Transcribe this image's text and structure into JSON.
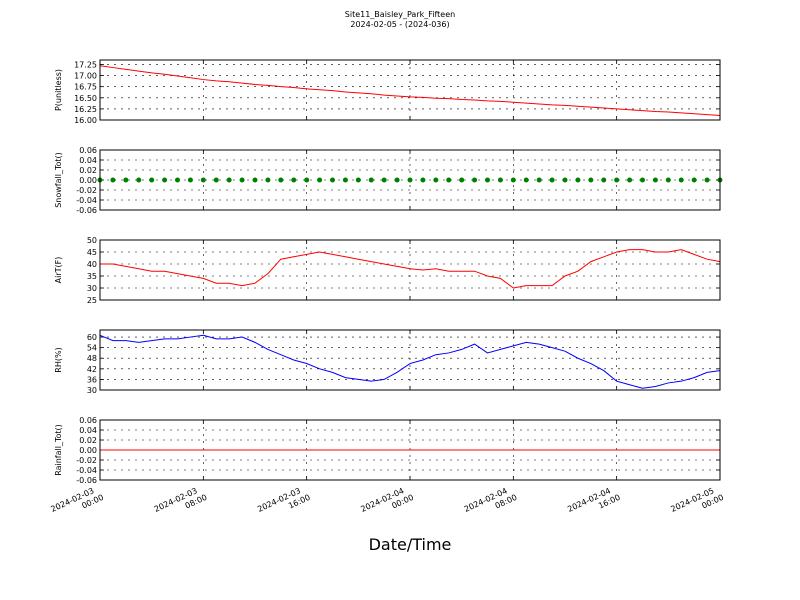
{
  "chart_data": [
    {
      "type": "line",
      "title": "Site11_Baisley_Park_Fifteen",
      "subtitle": "2024-02-05 - (2024-036)",
      "ylabel": "P(unitless)",
      "color": "#ff0000",
      "x": [
        "2024-02-03 00:00",
        "2024-02-03 01:00",
        "2024-02-03 02:00",
        "2024-02-03 03:00",
        "2024-02-03 04:00",
        "2024-02-03 05:00",
        "2024-02-03 06:00",
        "2024-02-03 07:00",
        "2024-02-03 08:00",
        "2024-02-03 09:00",
        "2024-02-03 10:00",
        "2024-02-03 11:00",
        "2024-02-03 12:00",
        "2024-02-03 13:00",
        "2024-02-03 14:00",
        "2024-02-03 15:00",
        "2024-02-03 16:00",
        "2024-02-03 17:00",
        "2024-02-03 18:00",
        "2024-02-03 19:00",
        "2024-02-03 20:00",
        "2024-02-03 21:00",
        "2024-02-03 22:00",
        "2024-02-03 23:00",
        "2024-02-04 00:00",
        "2024-02-04 01:00",
        "2024-02-04 02:00",
        "2024-02-04 03:00",
        "2024-02-04 04:00",
        "2024-02-04 05:00",
        "2024-02-04 06:00",
        "2024-02-04 07:00",
        "2024-02-04 08:00",
        "2024-02-04 09:00",
        "2024-02-04 10:00",
        "2024-02-04 11:00",
        "2024-02-04 12:00",
        "2024-02-04 13:00",
        "2024-02-04 14:00",
        "2024-02-04 15:00",
        "2024-02-04 16:00",
        "2024-02-04 17:00",
        "2024-02-04 18:00",
        "2024-02-04 19:00",
        "2024-02-04 20:00",
        "2024-02-04 21:00",
        "2024-02-04 22:00",
        "2024-02-04 23:00",
        "2024-02-05 00:00"
      ],
      "values": [
        17.22,
        17.18,
        17.14,
        17.1,
        17.06,
        17.03,
        16.99,
        16.95,
        16.91,
        16.88,
        16.86,
        16.83,
        16.8,
        16.78,
        16.75,
        16.73,
        16.7,
        16.68,
        16.66,
        16.63,
        16.61,
        16.59,
        16.56,
        16.54,
        16.52,
        16.51,
        16.49,
        16.48,
        16.46,
        16.45,
        16.43,
        16.42,
        16.4,
        16.38,
        16.36,
        16.34,
        16.33,
        16.31,
        16.29,
        16.27,
        16.25,
        16.23,
        16.21,
        16.19,
        16.18,
        16.16,
        16.14,
        16.12,
        16.1
      ],
      "xlim": [
        "2024-02-03 00:00",
        "2024-02-05 00:00"
      ],
      "xticks": [
        "2024-02-03 00:00",
        "2024-02-03 08:00",
        "2024-02-03 16:00",
        "2024-02-04 00:00",
        "2024-02-04 08:00",
        "2024-02-04 16:00",
        "2024-02-05 00:00"
      ],
      "ylim": [
        16.0,
        17.35
      ],
      "yticks": [
        {
          "value": 16.0,
          "label": "16.00"
        },
        16.25,
        {
          "value": 16.5,
          "label": "16.50"
        },
        16.75,
        {
          "value": 17.0,
          "label": "17.00"
        },
        17.25
      ],
      "grid": true
    },
    {
      "type": "scatter",
      "ylabel": "Snowfall_Tot()",
      "color": "#008000",
      "x": [
        "2024-02-03 00:00",
        "2024-02-03 01:00",
        "2024-02-03 02:00",
        "2024-02-03 03:00",
        "2024-02-03 04:00",
        "2024-02-03 05:00",
        "2024-02-03 06:00",
        "2024-02-03 07:00",
        "2024-02-03 08:00",
        "2024-02-03 09:00",
        "2024-02-03 10:00",
        "2024-02-03 11:00",
        "2024-02-03 12:00",
        "2024-02-03 13:00",
        "2024-02-03 14:00",
        "2024-02-03 15:00",
        "2024-02-03 16:00",
        "2024-02-03 17:00",
        "2024-02-03 18:00",
        "2024-02-03 19:00",
        "2024-02-03 20:00",
        "2024-02-03 21:00",
        "2024-02-03 22:00",
        "2024-02-03 23:00",
        "2024-02-04 00:00",
        "2024-02-04 01:00",
        "2024-02-04 02:00",
        "2024-02-04 03:00",
        "2024-02-04 04:00",
        "2024-02-04 05:00",
        "2024-02-04 06:00",
        "2024-02-04 07:00",
        "2024-02-04 08:00",
        "2024-02-04 09:00",
        "2024-02-04 10:00",
        "2024-02-04 11:00",
        "2024-02-04 12:00",
        "2024-02-04 13:00",
        "2024-02-04 14:00",
        "2024-02-04 15:00",
        "2024-02-04 16:00",
        "2024-02-04 17:00",
        "2024-02-04 18:00",
        "2024-02-04 19:00",
        "2024-02-04 20:00",
        "2024-02-04 21:00",
        "2024-02-04 22:00",
        "2024-02-04 23:00",
        "2024-02-05 00:00"
      ],
      "values": [
        0,
        0,
        0,
        0,
        0,
        0,
        0,
        0,
        0,
        0,
        0,
        0,
        0,
        0,
        0,
        0,
        0,
        0,
        0,
        0,
        0,
        0,
        0,
        0,
        0,
        0,
        0,
        0,
        0,
        0,
        0,
        0,
        0,
        0,
        0,
        0,
        0,
        0,
        0,
        0,
        0,
        0,
        0,
        0,
        0,
        0,
        0,
        0,
        0
      ],
      "xlim": [
        "2024-02-03 00:00",
        "2024-02-05 00:00"
      ],
      "xticks": [
        "2024-02-03 00:00",
        "2024-02-03 08:00",
        "2024-02-03 16:00",
        "2024-02-04 00:00",
        "2024-02-04 08:00",
        "2024-02-04 16:00",
        "2024-02-05 00:00"
      ],
      "ylim": [
        -0.06,
        0.06
      ],
      "yticks": [
        -0.06,
        -0.04,
        -0.02,
        {
          "value": 0,
          "label": "0.00"
        },
        0.02,
        0.04,
        0.06
      ],
      "grid": true
    },
    {
      "type": "line",
      "ylabel": "AirT(F)",
      "color": "#ff0000",
      "x": [
        "2024-02-03 00:00",
        "2024-02-03 01:00",
        "2024-02-03 02:00",
        "2024-02-03 03:00",
        "2024-02-03 04:00",
        "2024-02-03 05:00",
        "2024-02-03 06:00",
        "2024-02-03 07:00",
        "2024-02-03 08:00",
        "2024-02-03 09:00",
        "2024-02-03 10:00",
        "2024-02-03 11:00",
        "2024-02-03 12:00",
        "2024-02-03 13:00",
        "2024-02-03 14:00",
        "2024-02-03 15:00",
        "2024-02-03 16:00",
        "2024-02-03 17:00",
        "2024-02-03 18:00",
        "2024-02-03 19:00",
        "2024-02-03 20:00",
        "2024-02-03 21:00",
        "2024-02-03 22:00",
        "2024-02-03 23:00",
        "2024-02-04 00:00",
        "2024-02-04 01:00",
        "2024-02-04 02:00",
        "2024-02-04 03:00",
        "2024-02-04 04:00",
        "2024-02-04 05:00",
        "2024-02-04 06:00",
        "2024-02-04 07:00",
        "2024-02-04 08:00",
        "2024-02-04 09:00",
        "2024-02-04 10:00",
        "2024-02-04 11:00",
        "2024-02-04 12:00",
        "2024-02-04 13:00",
        "2024-02-04 14:00",
        "2024-02-04 15:00",
        "2024-02-04 16:00",
        "2024-02-04 17:00",
        "2024-02-04 18:00",
        "2024-02-04 19:00",
        "2024-02-04 20:00",
        "2024-02-04 21:00",
        "2024-02-04 22:00",
        "2024-02-04 23:00",
        "2024-02-05 00:00"
      ],
      "values": [
        40,
        40,
        39,
        38,
        37,
        37,
        36,
        35,
        34,
        32,
        32,
        31,
        32,
        36,
        42,
        43,
        44,
        45,
        44,
        43,
        42,
        41,
        40,
        39,
        38,
        37.5,
        38,
        37,
        37,
        37,
        35,
        34,
        30,
        31,
        31,
        31,
        35,
        37,
        41,
        43,
        45,
        46,
        46,
        45,
        45,
        46,
        44,
        42,
        41
      ],
      "xlim": [
        "2024-02-03 00:00",
        "2024-02-05 00:00"
      ],
      "xticks": [
        "2024-02-03 00:00",
        "2024-02-03 08:00",
        "2024-02-03 16:00",
        "2024-02-04 00:00",
        "2024-02-04 08:00",
        "2024-02-04 16:00",
        "2024-02-05 00:00"
      ],
      "ylim": [
        25,
        50
      ],
      "yticks": [
        25,
        30,
        35,
        40,
        45,
        50
      ],
      "grid": true
    },
    {
      "type": "line",
      "ylabel": "RH(%)",
      "color": "#0000ff",
      "x": [
        "2024-02-03 00:00",
        "2024-02-03 01:00",
        "2024-02-03 02:00",
        "2024-02-03 03:00",
        "2024-02-03 04:00",
        "2024-02-03 05:00",
        "2024-02-03 06:00",
        "2024-02-03 07:00",
        "2024-02-03 08:00",
        "2024-02-03 09:00",
        "2024-02-03 10:00",
        "2024-02-03 11:00",
        "2024-02-03 12:00",
        "2024-02-03 13:00",
        "2024-02-03 14:00",
        "2024-02-03 15:00",
        "2024-02-03 16:00",
        "2024-02-03 17:00",
        "2024-02-03 18:00",
        "2024-02-03 19:00",
        "2024-02-03 20:00",
        "2024-02-03 21:00",
        "2024-02-03 22:00",
        "2024-02-03 23:00",
        "2024-02-04 00:00",
        "2024-02-04 01:00",
        "2024-02-04 02:00",
        "2024-02-04 03:00",
        "2024-02-04 04:00",
        "2024-02-04 05:00",
        "2024-02-04 06:00",
        "2024-02-04 07:00",
        "2024-02-04 08:00",
        "2024-02-04 09:00",
        "2024-02-04 10:00",
        "2024-02-04 11:00",
        "2024-02-04 12:00",
        "2024-02-04 13:00",
        "2024-02-04 14:00",
        "2024-02-04 15:00",
        "2024-02-04 16:00",
        "2024-02-04 17:00",
        "2024-02-04 18:00",
        "2024-02-04 19:00",
        "2024-02-04 20:00",
        "2024-02-04 21:00",
        "2024-02-04 22:00",
        "2024-02-04 23:00",
        "2024-02-05 00:00"
      ],
      "values": [
        61,
        58,
        58,
        57,
        58,
        59,
        59,
        60,
        61,
        59,
        59,
        60,
        57,
        53,
        50,
        47,
        45,
        42,
        40,
        37,
        36,
        35,
        36,
        40,
        45,
        47,
        50,
        51,
        53,
        56,
        51,
        53,
        55,
        57,
        56,
        54,
        52,
        48,
        45,
        41,
        35,
        33,
        31,
        32,
        34,
        35,
        37,
        40,
        41
      ],
      "xlim": [
        "2024-02-03 00:00",
        "2024-02-05 00:00"
      ],
      "xticks": [
        "2024-02-03 00:00",
        "2024-02-03 08:00",
        "2024-02-03 16:00",
        "2024-02-04 00:00",
        "2024-02-04 08:00",
        "2024-02-04 16:00",
        "2024-02-05 00:00"
      ],
      "ylim": [
        30,
        64
      ],
      "yticks": [
        30,
        36,
        42,
        48,
        54,
        60
      ],
      "grid": true
    },
    {
      "type": "line",
      "ylabel": "Rainfall_Tot()",
      "xlabel": "Date/Time",
      "color": "#ff0000",
      "x": [
        "2024-02-03 00:00",
        "2024-02-03 01:00",
        "2024-02-03 02:00",
        "2024-02-03 03:00",
        "2024-02-03 04:00",
        "2024-02-03 05:00",
        "2024-02-03 06:00",
        "2024-02-03 07:00",
        "2024-02-03 08:00",
        "2024-02-03 09:00",
        "2024-02-03 10:00",
        "2024-02-03 11:00",
        "2024-02-03 12:00",
        "2024-02-03 13:00",
        "2024-02-03 14:00",
        "2024-02-03 15:00",
        "2024-02-03 16:00",
        "2024-02-03 17:00",
        "2024-02-03 18:00",
        "2024-02-03 19:00",
        "2024-02-03 20:00",
        "2024-02-03 21:00",
        "2024-02-03 22:00",
        "2024-02-03 23:00",
        "2024-02-04 00:00",
        "2024-02-04 01:00",
        "2024-02-04 02:00",
        "2024-02-04 03:00",
        "2024-02-04 04:00",
        "2024-02-04 05:00",
        "2024-02-04 06:00",
        "2024-02-04 07:00",
        "2024-02-04 08:00",
        "2024-02-04 09:00",
        "2024-02-04 10:00",
        "2024-02-04 11:00",
        "2024-02-04 12:00",
        "2024-02-04 13:00",
        "2024-02-04 14:00",
        "2024-02-04 15:00",
        "2024-02-04 16:00",
        "2024-02-04 17:00",
        "2024-02-04 18:00",
        "2024-02-04 19:00",
        "2024-02-04 20:00",
        "2024-02-04 21:00",
        "2024-02-04 22:00",
        "2024-02-04 23:00",
        "2024-02-05 00:00"
      ],
      "values": [
        0,
        0,
        0,
        0,
        0,
        0,
        0,
        0,
        0,
        0,
        0,
        0,
        0,
        0,
        0,
        0,
        0,
        0,
        0,
        0,
        0,
        0,
        0,
        0,
        0,
        0,
        0,
        0,
        0,
        0,
        0,
        0,
        0,
        0,
        0,
        0,
        0,
        0,
        0,
        0,
        0,
        0,
        0,
        0,
        0,
        0,
        0,
        0,
        0
      ],
      "xlim": [
        "2024-02-03 00:00",
        "2024-02-05 00:00"
      ],
      "xticks": [
        "2024-02-03 00:00",
        "2024-02-03 08:00",
        "2024-02-03 16:00",
        "2024-02-04 00:00",
        "2024-02-04 08:00",
        "2024-02-04 16:00",
        "2024-02-05 00:00"
      ],
      "ylim": [
        -0.06,
        0.06
      ],
      "yticks": [
        -0.06,
        -0.04,
        -0.02,
        {
          "value": 0,
          "label": "0.00"
        },
        0.02,
        0.04,
        0.06
      ],
      "grid": true
    }
  ]
}
